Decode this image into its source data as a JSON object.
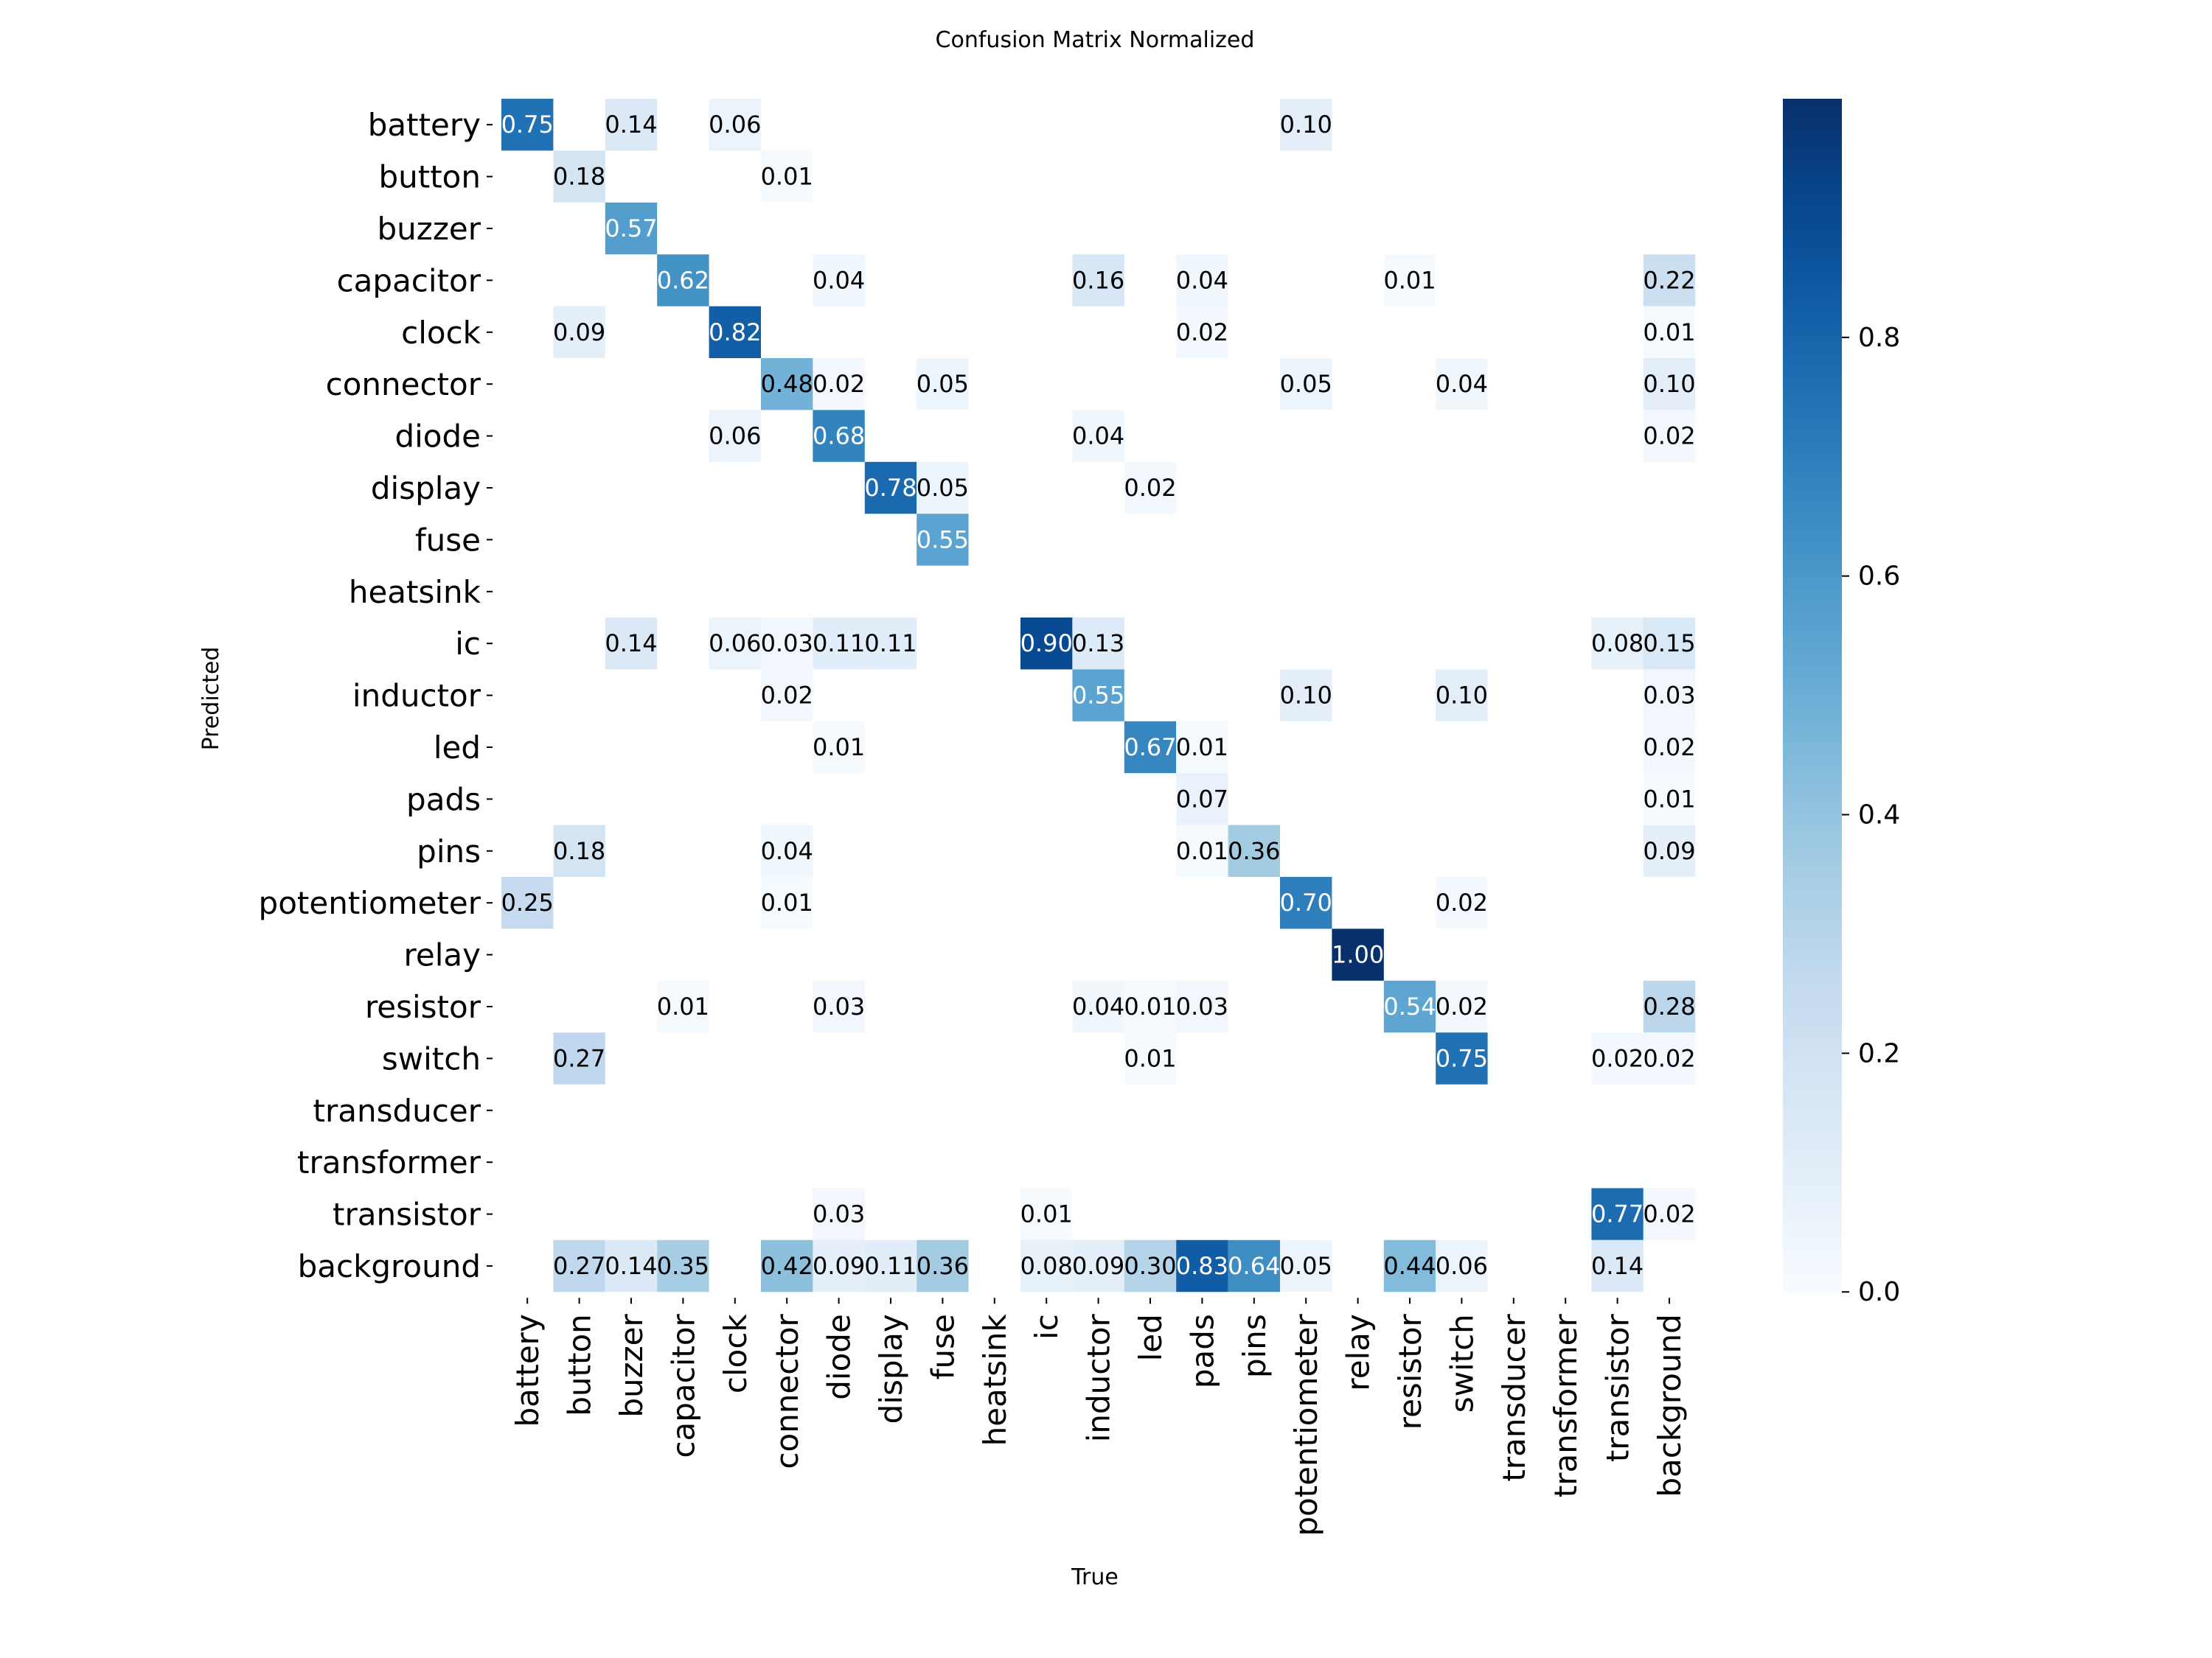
{
  "chart_data": {
    "type": "heatmap",
    "title": "Confusion Matrix Normalized",
    "xlabel": "True",
    "ylabel": "Predicted",
    "x_categories": [
      "battery",
      "button",
      "buzzer",
      "capacitor",
      "clock",
      "connector",
      "diode",
      "display",
      "fuse",
      "heatsink",
      "ic",
      "inductor",
      "led",
      "pads",
      "pins",
      "potentiometer",
      "relay",
      "resistor",
      "switch",
      "transducer",
      "transformer",
      "transistor",
      "background"
    ],
    "y_categories": [
      "battery",
      "button",
      "buzzer",
      "capacitor",
      "clock",
      "connector",
      "diode",
      "display",
      "fuse",
      "heatsink",
      "ic",
      "inductor",
      "led",
      "pads",
      "pins",
      "potentiometer",
      "relay",
      "resistor",
      "switch",
      "transducer",
      "transformer",
      "transistor",
      "background"
    ],
    "colormap": "Blues",
    "colorbar": {
      "min": 0.0,
      "max": 1.0,
      "ticks": [
        "0.0",
        "0.2",
        "0.4",
        "0.6",
        "0.8"
      ]
    },
    "cells": [
      {
        "row": 0,
        "col": 0,
        "value": 0.75,
        "label": "0.75"
      },
      {
        "row": 0,
        "col": 2,
        "value": 0.14,
        "label": "0.14"
      },
      {
        "row": 0,
        "col": 4,
        "value": 0.06,
        "label": "0.06"
      },
      {
        "row": 0,
        "col": 15,
        "value": 0.1,
        "label": "0.10"
      },
      {
        "row": 1,
        "col": 1,
        "value": 0.18,
        "label": "0.18"
      },
      {
        "row": 1,
        "col": 5,
        "value": 0.01,
        "label": "0.01"
      },
      {
        "row": 2,
        "col": 2,
        "value": 0.57,
        "label": "0.57"
      },
      {
        "row": 3,
        "col": 3,
        "value": 0.62,
        "label": "0.62"
      },
      {
        "row": 3,
        "col": 6,
        "value": 0.04,
        "label": "0.04"
      },
      {
        "row": 3,
        "col": 11,
        "value": 0.16,
        "label": "0.16"
      },
      {
        "row": 3,
        "col": 13,
        "value": 0.04,
        "label": "0.04"
      },
      {
        "row": 3,
        "col": 17,
        "value": 0.01,
        "label": "0.01"
      },
      {
        "row": 3,
        "col": 22,
        "value": 0.22,
        "label": "0.22"
      },
      {
        "row": 4,
        "col": 1,
        "value": 0.09,
        "label": "0.09"
      },
      {
        "row": 4,
        "col": 4,
        "value": 0.82,
        "label": "0.82"
      },
      {
        "row": 4,
        "col": 13,
        "value": 0.02,
        "label": "0.02"
      },
      {
        "row": 4,
        "col": 22,
        "value": 0.01,
        "label": "0.01"
      },
      {
        "row": 5,
        "col": 5,
        "value": 0.48,
        "label": "0.48"
      },
      {
        "row": 5,
        "col": 6,
        "value": 0.02,
        "label": "0.02"
      },
      {
        "row": 5,
        "col": 8,
        "value": 0.05,
        "label": "0.05"
      },
      {
        "row": 5,
        "col": 15,
        "value": 0.05,
        "label": "0.05"
      },
      {
        "row": 5,
        "col": 18,
        "value": 0.04,
        "label": "0.04"
      },
      {
        "row": 5,
        "col": 22,
        "value": 0.1,
        "label": "0.10"
      },
      {
        "row": 6,
        "col": 4,
        "value": 0.06,
        "label": "0.06"
      },
      {
        "row": 6,
        "col": 6,
        "value": 0.68,
        "label": "0.68"
      },
      {
        "row": 6,
        "col": 11,
        "value": 0.04,
        "label": "0.04"
      },
      {
        "row": 6,
        "col": 22,
        "value": 0.02,
        "label": "0.02"
      },
      {
        "row": 7,
        "col": 7,
        "value": 0.78,
        "label": "0.78"
      },
      {
        "row": 7,
        "col": 8,
        "value": 0.05,
        "label": "0.05"
      },
      {
        "row": 7,
        "col": 12,
        "value": 0.02,
        "label": "0.02"
      },
      {
        "row": 8,
        "col": 8,
        "value": 0.55,
        "label": "0.55"
      },
      {
        "row": 10,
        "col": 2,
        "value": 0.14,
        "label": "0.14"
      },
      {
        "row": 10,
        "col": 4,
        "value": 0.06,
        "label": "0.06"
      },
      {
        "row": 10,
        "col": 5,
        "value": 0.03,
        "label": "0.03"
      },
      {
        "row": 10,
        "col": 6,
        "value": 0.11,
        "label": "0.11"
      },
      {
        "row": 10,
        "col": 7,
        "value": 0.11,
        "label": "0.11"
      },
      {
        "row": 10,
        "col": 10,
        "value": 0.9,
        "label": "0.90"
      },
      {
        "row": 10,
        "col": 11,
        "value": 0.13,
        "label": "0.13"
      },
      {
        "row": 10,
        "col": 21,
        "value": 0.08,
        "label": "0.08"
      },
      {
        "row": 10,
        "col": 22,
        "value": 0.15,
        "label": "0.15"
      },
      {
        "row": 11,
        "col": 5,
        "value": 0.02,
        "label": "0.02"
      },
      {
        "row": 11,
        "col": 11,
        "value": 0.55,
        "label": "0.55"
      },
      {
        "row": 11,
        "col": 15,
        "value": 0.1,
        "label": "0.10"
      },
      {
        "row": 11,
        "col": 18,
        "value": 0.1,
        "label": "0.10"
      },
      {
        "row": 11,
        "col": 22,
        "value": 0.03,
        "label": "0.03"
      },
      {
        "row": 12,
        "col": 6,
        "value": 0.01,
        "label": "0.01"
      },
      {
        "row": 12,
        "col": 12,
        "value": 0.67,
        "label": "0.67"
      },
      {
        "row": 12,
        "col": 13,
        "value": 0.01,
        "label": "0.01"
      },
      {
        "row": 12,
        "col": 22,
        "value": 0.02,
        "label": "0.02"
      },
      {
        "row": 13,
        "col": 13,
        "value": 0.07,
        "label": "0.07"
      },
      {
        "row": 13,
        "col": 22,
        "value": 0.01,
        "label": "0.01"
      },
      {
        "row": 14,
        "col": 1,
        "value": 0.18,
        "label": "0.18"
      },
      {
        "row": 14,
        "col": 5,
        "value": 0.04,
        "label": "0.04"
      },
      {
        "row": 14,
        "col": 13,
        "value": 0.01,
        "label": "0.01"
      },
      {
        "row": 14,
        "col": 14,
        "value": 0.36,
        "label": "0.36"
      },
      {
        "row": 14,
        "col": 22,
        "value": 0.09,
        "label": "0.09"
      },
      {
        "row": 15,
        "col": 0,
        "value": 0.25,
        "label": "0.25"
      },
      {
        "row": 15,
        "col": 5,
        "value": 0.01,
        "label": "0.01"
      },
      {
        "row": 15,
        "col": 15,
        "value": 0.7,
        "label": "0.70"
      },
      {
        "row": 15,
        "col": 18,
        "value": 0.02,
        "label": "0.02"
      },
      {
        "row": 16,
        "col": 16,
        "value": 1.0,
        "label": "1.00"
      },
      {
        "row": 17,
        "col": 3,
        "value": 0.01,
        "label": "0.01"
      },
      {
        "row": 17,
        "col": 6,
        "value": 0.03,
        "label": "0.03"
      },
      {
        "row": 17,
        "col": 11,
        "value": 0.04,
        "label": "0.04"
      },
      {
        "row": 17,
        "col": 12,
        "value": 0.01,
        "label": "0.01"
      },
      {
        "row": 17,
        "col": 13,
        "value": 0.03,
        "label": "0.03"
      },
      {
        "row": 17,
        "col": 17,
        "value": 0.54,
        "label": "0.54"
      },
      {
        "row": 17,
        "col": 18,
        "value": 0.02,
        "label": "0.02"
      },
      {
        "row": 17,
        "col": 22,
        "value": 0.28,
        "label": "0.28"
      },
      {
        "row": 18,
        "col": 1,
        "value": 0.27,
        "label": "0.27"
      },
      {
        "row": 18,
        "col": 12,
        "value": 0.01,
        "label": "0.01"
      },
      {
        "row": 18,
        "col": 18,
        "value": 0.75,
        "label": "0.75"
      },
      {
        "row": 18,
        "col": 21,
        "value": 0.02,
        "label": "0.02"
      },
      {
        "row": 18,
        "col": 22,
        "value": 0.02,
        "label": "0.02"
      },
      {
        "row": 21,
        "col": 6,
        "value": 0.03,
        "label": "0.03"
      },
      {
        "row": 21,
        "col": 10,
        "value": 0.01,
        "label": "0.01"
      },
      {
        "row": 21,
        "col": 21,
        "value": 0.77,
        "label": "0.77"
      },
      {
        "row": 21,
        "col": 22,
        "value": 0.02,
        "label": "0.02"
      },
      {
        "row": 22,
        "col": 1,
        "value": 0.27,
        "label": "0.27"
      },
      {
        "row": 22,
        "col": 2,
        "value": 0.14,
        "label": "0.14"
      },
      {
        "row": 22,
        "col": 3,
        "value": 0.35,
        "label": "0.35"
      },
      {
        "row": 22,
        "col": 5,
        "value": 0.42,
        "label": "0.42"
      },
      {
        "row": 22,
        "col": 6,
        "value": 0.09,
        "label": "0.09"
      },
      {
        "row": 22,
        "col": 7,
        "value": 0.11,
        "label": "0.11"
      },
      {
        "row": 22,
        "col": 8,
        "value": 0.36,
        "label": "0.36"
      },
      {
        "row": 22,
        "col": 10,
        "value": 0.08,
        "label": "0.08"
      },
      {
        "row": 22,
        "col": 11,
        "value": 0.09,
        "label": "0.09"
      },
      {
        "row": 22,
        "col": 12,
        "value": 0.3,
        "label": "0.30"
      },
      {
        "row": 22,
        "col": 13,
        "value": 0.83,
        "label": "0.83"
      },
      {
        "row": 22,
        "col": 14,
        "value": 0.64,
        "label": "0.64"
      },
      {
        "row": 22,
        "col": 15,
        "value": 0.05,
        "label": "0.05"
      },
      {
        "row": 22,
        "col": 17,
        "value": 0.44,
        "label": "0.44"
      },
      {
        "row": 22,
        "col": 18,
        "value": 0.06,
        "label": "0.06"
      },
      {
        "row": 22,
        "col": 21,
        "value": 0.14,
        "label": "0.14"
      }
    ]
  }
}
